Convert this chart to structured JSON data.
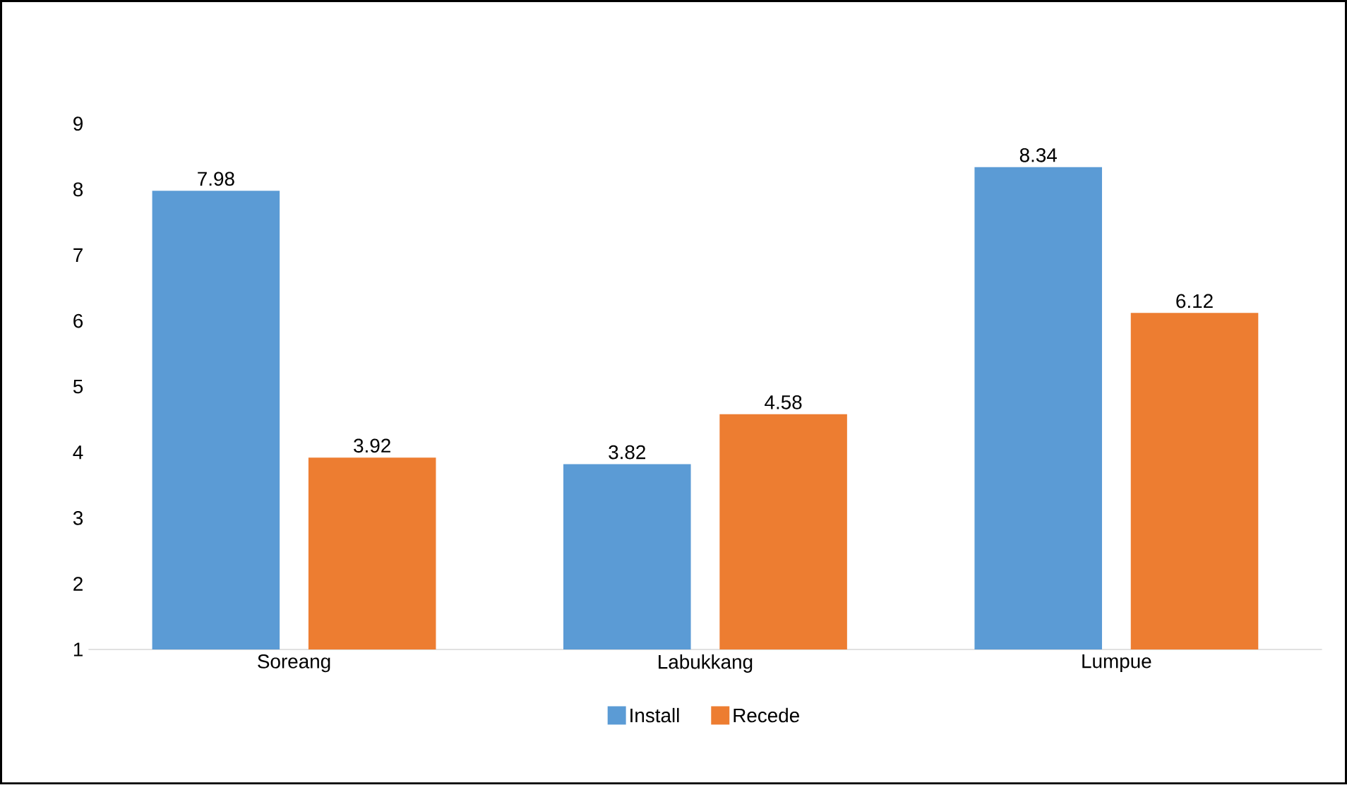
{
  "chart_data": {
    "type": "bar",
    "categories": [
      "Soreang",
      "Labukkang",
      "Lumpue"
    ],
    "series": [
      {
        "name": "Install",
        "color": "#5b9bd5",
        "values": [
          7.98,
          3.82,
          8.34
        ]
      },
      {
        "name": "Recede",
        "color": "#ed7d31",
        "values": [
          3.92,
          4.58,
          6.12
        ]
      }
    ],
    "ylim": [
      1,
      9
    ],
    "yticks": [
      1,
      2,
      3,
      4,
      5,
      6,
      7,
      8,
      9
    ],
    "data_labels": true,
    "legend": "bottom",
    "grid": false
  }
}
